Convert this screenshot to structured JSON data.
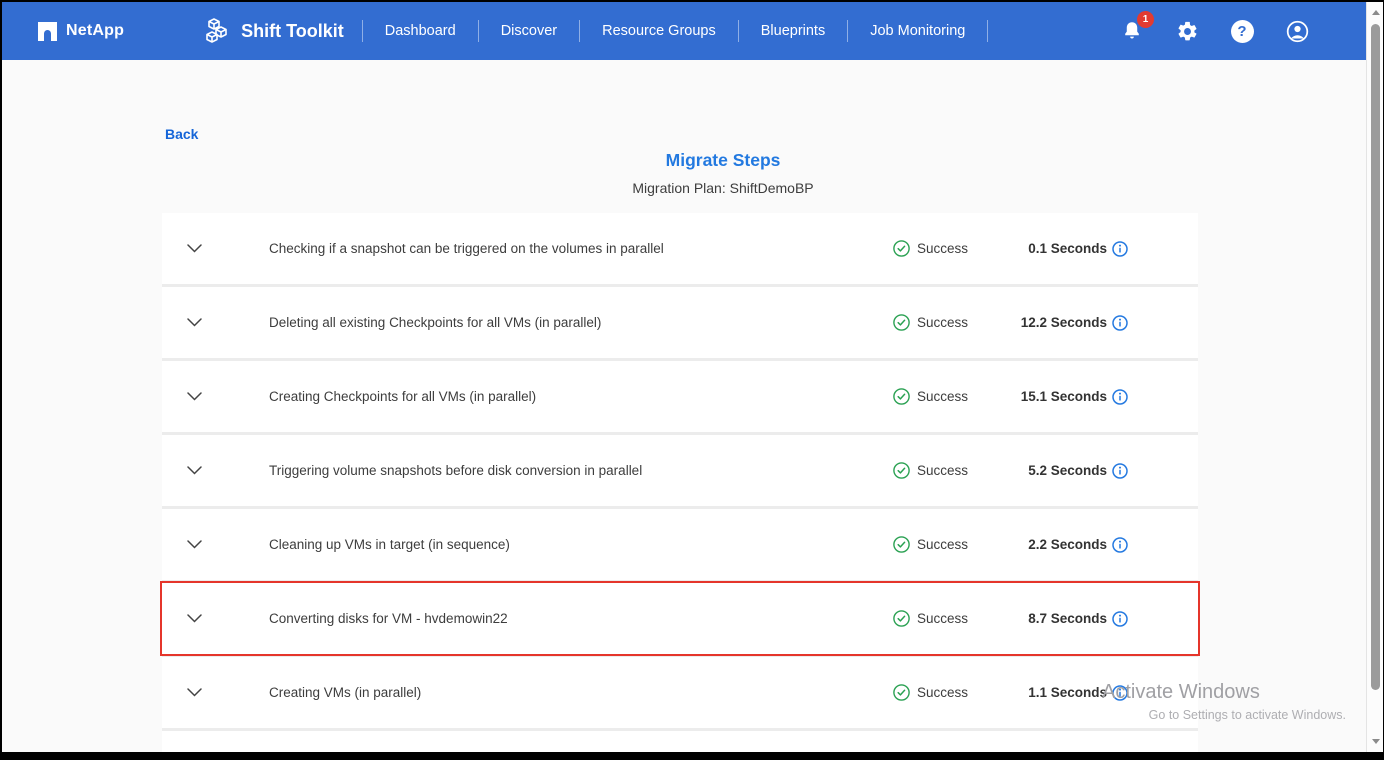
{
  "header": {
    "brand": "NetApp",
    "app_title": "Shift Toolkit",
    "nav": [
      "Dashboard",
      "Discover",
      "Resource Groups",
      "Blueprints",
      "Job Monitoring"
    ],
    "notification_count": "1",
    "help_glyph": "?"
  },
  "page": {
    "back_label": "Back",
    "title": "Migrate Steps",
    "subtitle": "Migration Plan: ShiftDemoBP"
  },
  "steps": [
    {
      "label": "Checking if a snapshot can be triggered on the volumes in parallel",
      "status": "Success",
      "duration": "0.1 Seconds",
      "highlighted": false
    },
    {
      "label": "Deleting all existing Checkpoints for all VMs (in parallel)",
      "status": "Success",
      "duration": "12.2 Seconds",
      "highlighted": false
    },
    {
      "label": "Creating Checkpoints for all VMs (in parallel)",
      "status": "Success",
      "duration": "15.1 Seconds",
      "highlighted": false
    },
    {
      "label": "Triggering volume snapshots before disk conversion in parallel",
      "status": "Success",
      "duration": "5.2 Seconds",
      "highlighted": false
    },
    {
      "label": "Cleaning up VMs in target (in sequence)",
      "status": "Success",
      "duration": "2.2 Seconds",
      "highlighted": false
    },
    {
      "label": "Converting disks for VM - hvdemowin22",
      "status": "Success",
      "duration": "8.7 Seconds",
      "highlighted": true
    },
    {
      "label": "Creating VMs (in parallel)",
      "status": "Success",
      "duration": "1.1 Seconds",
      "highlighted": false
    }
  ],
  "watermark": {
    "line1": "Activate Windows",
    "line2": "Go to Settings to activate Windows."
  },
  "colors": {
    "header_bg": "#336dd1",
    "accent_blue": "#1a73e8",
    "success_green": "#2aa152",
    "highlight_red": "#e5352b",
    "badge_red": "#e23b32"
  }
}
